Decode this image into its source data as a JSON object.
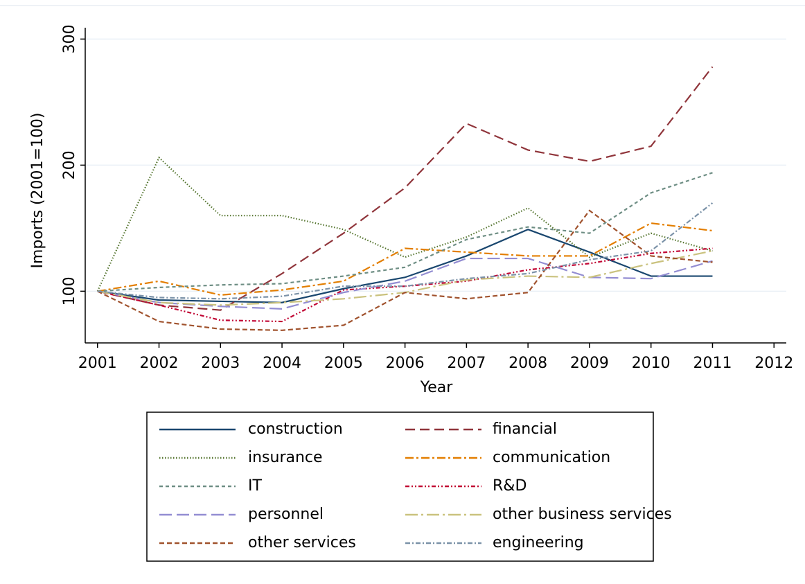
{
  "chart_data": {
    "type": "line",
    "y_label": "Imports (2001=100)",
    "x_label": "Year",
    "x": [
      2001,
      2002,
      2003,
      2004,
      2005,
      2006,
      2007,
      2008,
      2009,
      2010,
      2011
    ],
    "xlim": [
      2000.8,
      2012.2
    ],
    "xticks": [
      2001,
      2002,
      2003,
      2004,
      2005,
      2006,
      2007,
      2008,
      2009,
      2010,
      2011,
      2012
    ],
    "ylim": [
      59,
      309
    ],
    "yticks": [
      100,
      200,
      300
    ],
    "grid": true,
    "series": [
      {
        "name": "construction",
        "color": "#1a476f",
        "dash": "none",
        "values": [
          100,
          93,
          92,
          91,
          102,
          111,
          128,
          149,
          131,
          112,
          112
        ]
      },
      {
        "name": "financial",
        "color": "#90353b",
        "dash": "14 7",
        "values": [
          100,
          89,
          85,
          114,
          146,
          182,
          233,
          212,
          203,
          215,
          278
        ]
      },
      {
        "name": "insurance",
        "color": "#55752f",
        "dash": "1.5 2.5",
        "values": [
          100,
          206,
          160,
          160,
          149,
          127,
          143,
          166,
          127,
          146,
          132
        ]
      },
      {
        "name": "communication",
        "color": "#e37e00",
        "dash": "12 4 3 4",
        "values": [
          100,
          108,
          97,
          101,
          108,
          134,
          131,
          128,
          128,
          154,
          148
        ]
      },
      {
        "name": "IT",
        "color": "#6e8e84",
        "dash": "5 4",
        "values": [
          100,
          103,
          105,
          106,
          112,
          119,
          141,
          151,
          146,
          178,
          194
        ]
      },
      {
        "name": "R&D",
        "color": "#c10534",
        "dash": "6 3 2 3 2 3",
        "values": [
          100,
          89,
          77,
          76,
          101,
          104,
          108,
          117,
          122,
          130,
          134
        ]
      },
      {
        "name": "personnel",
        "color": "#938dd2",
        "dash": "18 7",
        "values": [
          100,
          91,
          88,
          86,
          99,
          108,
          126,
          126,
          111,
          110,
          124
        ]
      },
      {
        "name": "other business services",
        "color": "#cac27e",
        "dash": "18 5 3 5",
        "values": [
          100,
          91,
          89,
          91,
          94,
          99,
          109,
          112,
          111,
          122,
          132
        ]
      },
      {
        "name": "other services",
        "color": "#a0522d",
        "dash": "7 4",
        "values": [
          100,
          76,
          70,
          69,
          73,
          99,
          94,
          99,
          164,
          128,
          123
        ]
      },
      {
        "name": "engineering",
        "color": "#7b92a8",
        "dash": "7 3 2 3",
        "values": [
          100,
          95,
          94,
          96,
          104,
          104,
          110,
          114,
          125,
          132,
          170
        ]
      }
    ]
  }
}
